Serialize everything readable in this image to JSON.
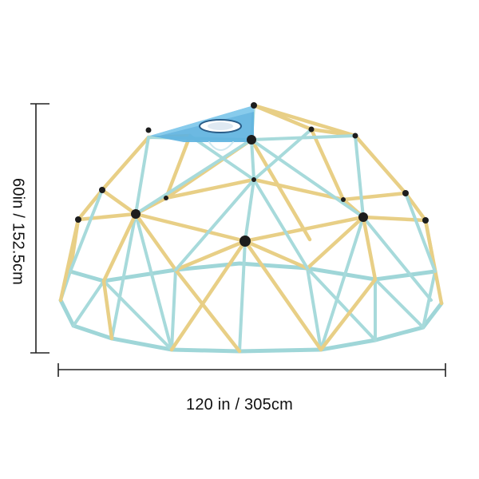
{
  "product": {
    "name": "",
    "description": ""
  },
  "dimensions": {
    "height_text": "60in / 152.5cm",
    "width_text": "120 in / 305cm"
  },
  "colors": {
    "yellow_bar": "#e8cf86",
    "blue_bar": "#9fd6d8",
    "connector": "#1d1d1d",
    "canopy": "#5fb3e0",
    "dimension_line": "#222222"
  }
}
